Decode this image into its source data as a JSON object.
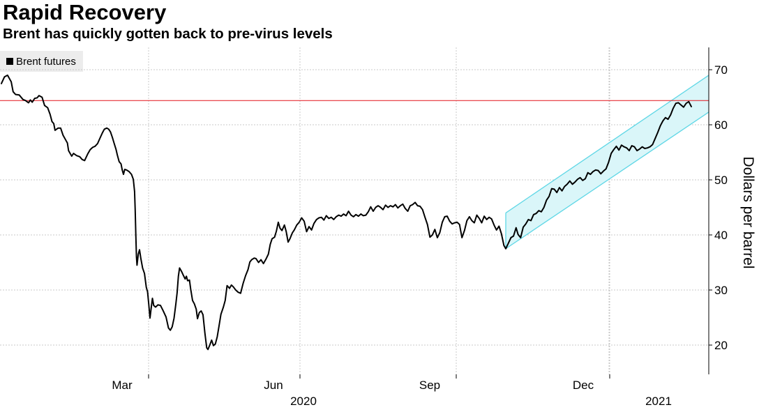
{
  "chart_data": {
    "type": "line",
    "title": "Rapid Recovery",
    "subtitle": "Brent has quickly gotten back to pre-virus levels",
    "ylabel": "Dollars per barrel",
    "xlabel": "",
    "ylim": [
      15,
      74
    ],
    "yticks": [
      20,
      30,
      40,
      50,
      60,
      70
    ],
    "y_tick_labels": [
      "20",
      "30",
      "40",
      "50",
      "60",
      "70"
    ],
    "x_tick_labels": [
      {
        "label": "Mar",
        "t": 2.0
      },
      {
        "label": "Jun",
        "t": 5.0
      },
      {
        "label": "Sep",
        "t": 8.0
      },
      {
        "label": "Dec",
        "t": 11.0
      }
    ],
    "year_labels": [
      {
        "label": "2020",
        "t": 5.0
      },
      {
        "label": "2021",
        "t": 12.7
      }
    ],
    "x_domain": [
      -0.87,
      13.85
    ],
    "reference_line": {
      "value": 64.4,
      "color": "#e3121a"
    },
    "channel": {
      "t_start": 9.96,
      "t_end": 13.85,
      "upper_start": 44.0,
      "upper_end": 69.0,
      "lower_start": 37.5,
      "lower_end": 62.3,
      "color": "#5fd7e6",
      "fill": "#daf6f9"
    },
    "legend": [
      "Brent futures"
    ],
    "series": [
      {
        "name": "Brent futures",
        "color": "#000000",
        "points": [
          [
            -0.87,
            67.5
          ],
          [
            -0.82,
            68.7
          ],
          [
            -0.77,
            69.0
          ],
          [
            -0.71,
            67.8
          ],
          [
            -0.68,
            66.0
          ],
          [
            -0.64,
            65.5
          ],
          [
            -0.58,
            65.4
          ],
          [
            -0.52,
            64.6
          ],
          [
            -0.48,
            64.4
          ],
          [
            -0.43,
            64.0
          ],
          [
            -0.4,
            64.5
          ],
          [
            -0.37,
            64.1
          ],
          [
            -0.33,
            64.8
          ],
          [
            -0.29,
            64.9
          ],
          [
            -0.26,
            65.3
          ],
          [
            -0.21,
            65.0
          ],
          [
            -0.17,
            63.5
          ],
          [
            -0.12,
            63.1
          ],
          [
            -0.08,
            61.9
          ],
          [
            -0.05,
            60.6
          ],
          [
            -0.02,
            60.2
          ],
          [
            0.0,
            59.0
          ],
          [
            0.05,
            59.4
          ],
          [
            0.09,
            59.4
          ],
          [
            0.13,
            58.1
          ],
          [
            0.17,
            57.3
          ],
          [
            0.2,
            56.7
          ],
          [
            0.22,
            55.3
          ],
          [
            0.25,
            54.7
          ],
          [
            0.27,
            54.3
          ],
          [
            0.3,
            54.8
          ],
          [
            0.35,
            54.4
          ],
          [
            0.4,
            54.2
          ],
          [
            0.44,
            53.7
          ],
          [
            0.48,
            53.5
          ],
          [
            0.53,
            54.7
          ],
          [
            0.57,
            55.5
          ],
          [
            0.61,
            55.9
          ],
          [
            0.65,
            56.1
          ],
          [
            0.69,
            56.6
          ],
          [
            0.73,
            57.6
          ],
          [
            0.77,
            58.6
          ],
          [
            0.8,
            59.2
          ],
          [
            0.84,
            59.4
          ],
          [
            0.87,
            59.2
          ],
          [
            0.9,
            58.7
          ],
          [
            0.93,
            57.7
          ],
          [
            0.96,
            56.6
          ],
          [
            0.99,
            55.5
          ],
          [
            1.01,
            54.5
          ],
          [
            1.04,
            53.3
          ],
          [
            1.07,
            52.9
          ],
          [
            1.09,
            51.8
          ],
          [
            1.11,
            51.0
          ],
          [
            1.13,
            51.9
          ],
          [
            1.16,
            51.8
          ],
          [
            1.2,
            51.5
          ],
          [
            1.24,
            51.0
          ],
          [
            1.27,
            50.1
          ],
          [
            1.29,
            47.9
          ],
          [
            1.3,
            44.5
          ],
          [
            1.31,
            40.0
          ],
          [
            1.32,
            36.0
          ],
          [
            1.33,
            34.5
          ],
          [
            1.35,
            36.5
          ],
          [
            1.37,
            37.3
          ],
          [
            1.39,
            35.8
          ],
          [
            1.42,
            34.0
          ],
          [
            1.45,
            33.0
          ],
          [
            1.48,
            30.5
          ],
          [
            1.5,
            29.7
          ],
          [
            1.52,
            27.5
          ],
          [
            1.54,
            24.9
          ],
          [
            1.56,
            26.8
          ],
          [
            1.58,
            28.5
          ],
          [
            1.6,
            27.2
          ],
          [
            1.63,
            26.9
          ],
          [
            1.67,
            27.3
          ],
          [
            1.71,
            27.2
          ],
          [
            1.75,
            26.3
          ],
          [
            1.8,
            25.1
          ],
          [
            1.84,
            23.1
          ],
          [
            1.87,
            22.7
          ],
          [
            1.9,
            23.3
          ],
          [
            1.93,
            24.9
          ],
          [
            1.96,
            27.5
          ],
          [
            1.98,
            29.5
          ],
          [
            2.0,
            32.5
          ],
          [
            2.02,
            34.0
          ],
          [
            2.05,
            33.4
          ],
          [
            2.08,
            32.7
          ],
          [
            2.11,
            32.0
          ],
          [
            2.13,
            32.5
          ],
          [
            2.15,
            31.7
          ],
          [
            2.18,
            31.8
          ],
          [
            2.2,
            30.2
          ],
          [
            2.23,
            28.1
          ],
          [
            2.26,
            27.5
          ],
          [
            2.29,
            26.5
          ],
          [
            2.31,
            24.8
          ],
          [
            2.34,
            25.9
          ],
          [
            2.37,
            26.2
          ],
          [
            2.4,
            25.5
          ],
          [
            2.43,
            22.2
          ],
          [
            2.46,
            19.5
          ],
          [
            2.48,
            19.2
          ],
          [
            2.51,
            20.0
          ],
          [
            2.54,
            20.9
          ],
          [
            2.57,
            19.9
          ],
          [
            2.6,
            20.2
          ],
          [
            2.63,
            21.5
          ],
          [
            2.66,
            23.5
          ],
          [
            2.69,
            25.6
          ],
          [
            2.73,
            26.9
          ],
          [
            2.76,
            28.1
          ],
          [
            2.79,
            30.8
          ],
          [
            2.83,
            30.3
          ],
          [
            2.86,
            30.9
          ],
          [
            2.89,
            30.6
          ],
          [
            2.93,
            30.0
          ],
          [
            2.97,
            29.6
          ],
          [
            3.01,
            29.4
          ],
          [
            3.05,
            31.2
          ],
          [
            3.09,
            32.6
          ],
          [
            3.13,
            33.7
          ],
          [
            3.16,
            35.1
          ],
          [
            3.19,
            35.5
          ],
          [
            3.23,
            35.8
          ],
          [
            3.26,
            35.7
          ],
          [
            3.3,
            35.0
          ],
          [
            3.34,
            35.5
          ],
          [
            3.38,
            34.8
          ],
          [
            3.42,
            35.6
          ],
          [
            3.46,
            36.5
          ],
          [
            3.49,
            38.3
          ],
          [
            3.52,
            39.3
          ],
          [
            3.56,
            39.6
          ],
          [
            3.59,
            40.7
          ],
          [
            3.62,
            42.3
          ],
          [
            3.65,
            41.2
          ],
          [
            3.68,
            40.8
          ],
          [
            3.72,
            41.8
          ],
          [
            3.75,
            40.6
          ],
          [
            3.78,
            38.7
          ],
          [
            3.81,
            39.3
          ],
          [
            3.85,
            40.4
          ],
          [
            3.88,
            40.9
          ],
          [
            3.92,
            41.8
          ],
          [
            3.96,
            42.3
          ],
          [
            4.0,
            43.1
          ],
          [
            4.04,
            42.5
          ],
          [
            4.08,
            40.6
          ],
          [
            4.12,
            41.5
          ],
          [
            4.16,
            40.9
          ],
          [
            4.2,
            42.1
          ],
          [
            4.24,
            42.8
          ],
          [
            4.28,
            43.1
          ],
          [
            4.32,
            43.2
          ],
          [
            4.36,
            42.7
          ],
          [
            4.4,
            43.5
          ],
          [
            4.44,
            43.0
          ],
          [
            4.48,
            43.2
          ],
          [
            4.52,
            42.8
          ],
          [
            4.56,
            43.3
          ],
          [
            4.6,
            43.6
          ],
          [
            4.64,
            43.4
          ],
          [
            4.68,
            43.8
          ],
          [
            4.72,
            43.5
          ],
          [
            4.76,
            44.3
          ],
          [
            4.8,
            43.6
          ],
          [
            4.84,
            43.3
          ],
          [
            4.88,
            43.7
          ],
          [
            4.92,
            43.4
          ],
          [
            4.96,
            43.8
          ],
          [
            5.0,
            43.5
          ],
          [
            5.04,
            43.6
          ],
          [
            5.08,
            44.2
          ],
          [
            5.12,
            45.1
          ],
          [
            5.16,
            44.3
          ],
          [
            5.2,
            45.0
          ],
          [
            5.24,
            45.3
          ],
          [
            5.28,
            45.0
          ],
          [
            5.32,
            44.6
          ],
          [
            5.36,
            45.4
          ],
          [
            5.4,
            45.0
          ],
          [
            5.44,
            45.3
          ],
          [
            5.48,
            45.1
          ],
          [
            5.52,
            45.5
          ],
          [
            5.56,
            44.9
          ],
          [
            5.6,
            45.3
          ],
          [
            5.64,
            45.6
          ],
          [
            5.68,
            44.8
          ],
          [
            5.72,
            44.3
          ],
          [
            5.76,
            45.3
          ],
          [
            5.8,
            45.5
          ],
          [
            5.84,
            45.9
          ],
          [
            5.88,
            45.3
          ],
          [
            5.92,
            45.2
          ],
          [
            5.96,
            44.6
          ],
          [
            6.0,
            43.2
          ],
          [
            6.04,
            41.9
          ],
          [
            6.08,
            39.6
          ],
          [
            6.12,
            40.0
          ],
          [
            6.16,
            41.0
          ],
          [
            6.2,
            39.5
          ],
          [
            6.24,
            40.4
          ],
          [
            6.28,
            42.3
          ],
          [
            6.32,
            43.3
          ],
          [
            6.36,
            43.4
          ],
          [
            6.4,
            42.5
          ],
          [
            6.44,
            42.0
          ],
          [
            6.48,
            42.2
          ],
          [
            6.52,
            42.3
          ],
          [
            6.56,
            41.9
          ],
          [
            6.6,
            39.5
          ],
          [
            6.64,
            40.8
          ],
          [
            6.68,
            42.6
          ],
          [
            6.72,
            43.3
          ],
          [
            6.76,
            42.6
          ],
          [
            6.8,
            42.2
          ],
          [
            6.84,
            43.6
          ],
          [
            6.88,
            43.0
          ],
          [
            6.92,
            42.2
          ],
          [
            6.96,
            43.4
          ],
          [
            7.0,
            42.8
          ],
          [
            7.04,
            43.2
          ],
          [
            7.08,
            42.9
          ],
          [
            7.12,
            41.8
          ],
          [
            7.16,
            40.9
          ],
          [
            7.2,
            41.6
          ],
          [
            7.24,
            40.2
          ],
          [
            7.28,
            38.1
          ],
          [
            7.31,
            37.5
          ],
          [
            7.35,
            38.5
          ],
          [
            7.39,
            39.5
          ],
          [
            7.43,
            39.8
          ],
          [
            7.47,
            41.3
          ],
          [
            7.5,
            40.1
          ],
          [
            7.54,
            39.5
          ],
          [
            7.58,
            41.4
          ],
          [
            7.62,
            42.0
          ],
          [
            7.66,
            42.8
          ],
          [
            7.7,
            42.6
          ],
          [
            7.74,
            43.7
          ],
          [
            7.78,
            43.9
          ],
          [
            7.82,
            44.4
          ],
          [
            7.86,
            44.2
          ],
          [
            7.9,
            45.0
          ],
          [
            7.94,
            46.3
          ],
          [
            7.98,
            47.0
          ],
          [
            8.02,
            48.4
          ],
          [
            8.06,
            48.3
          ],
          [
            8.1,
            47.7
          ],
          [
            8.14,
            48.6
          ],
          [
            8.18,
            48.0
          ],
          [
            8.22,
            48.8
          ],
          [
            8.26,
            49.2
          ],
          [
            8.3,
            49.8
          ],
          [
            8.34,
            49.2
          ],
          [
            8.38,
            49.6
          ],
          [
            8.42,
            50.1
          ],
          [
            8.46,
            50.4
          ],
          [
            8.5,
            49.9
          ],
          [
            8.54,
            50.2
          ],
          [
            8.58,
            51.3
          ],
          [
            8.62,
            51.0
          ],
          [
            8.66,
            51.5
          ],
          [
            8.7,
            51.8
          ],
          [
            8.74,
            51.7
          ],
          [
            8.78,
            51.1
          ],
          [
            8.82,
            51.6
          ],
          [
            8.86,
            52.0
          ],
          [
            8.9,
            53.2
          ],
          [
            8.94,
            54.8
          ],
          [
            8.98,
            55.5
          ],
          [
            9.02,
            56.1
          ],
          [
            9.06,
            55.4
          ],
          [
            9.1,
            56.3
          ],
          [
            9.14,
            56.0
          ],
          [
            9.18,
            55.8
          ],
          [
            9.22,
            55.3
          ],
          [
            9.26,
            56.2
          ],
          [
            9.3,
            56.0
          ],
          [
            9.34,
            55.3
          ],
          [
            9.38,
            55.6
          ],
          [
            9.42,
            56.0
          ],
          [
            9.46,
            55.7
          ],
          [
            9.5,
            55.8
          ],
          [
            9.54,
            56.0
          ],
          [
            9.58,
            56.4
          ],
          [
            9.62,
            57.5
          ],
          [
            9.66,
            58.6
          ],
          [
            9.7,
            59.8
          ],
          [
            9.74,
            60.7
          ],
          [
            9.78,
            61.3
          ],
          [
            9.82,
            61.0
          ],
          [
            9.86,
            61.8
          ],
          [
            9.9,
            63.0
          ],
          [
            9.94,
            63.9
          ],
          [
            9.98,
            64.0
          ],
          [
            10.02,
            63.6
          ],
          [
            10.06,
            63.2
          ],
          [
            10.1,
            63.9
          ],
          [
            10.14,
            64.2
          ],
          [
            10.18,
            63.3
          ]
        ]
      }
    ]
  }
}
